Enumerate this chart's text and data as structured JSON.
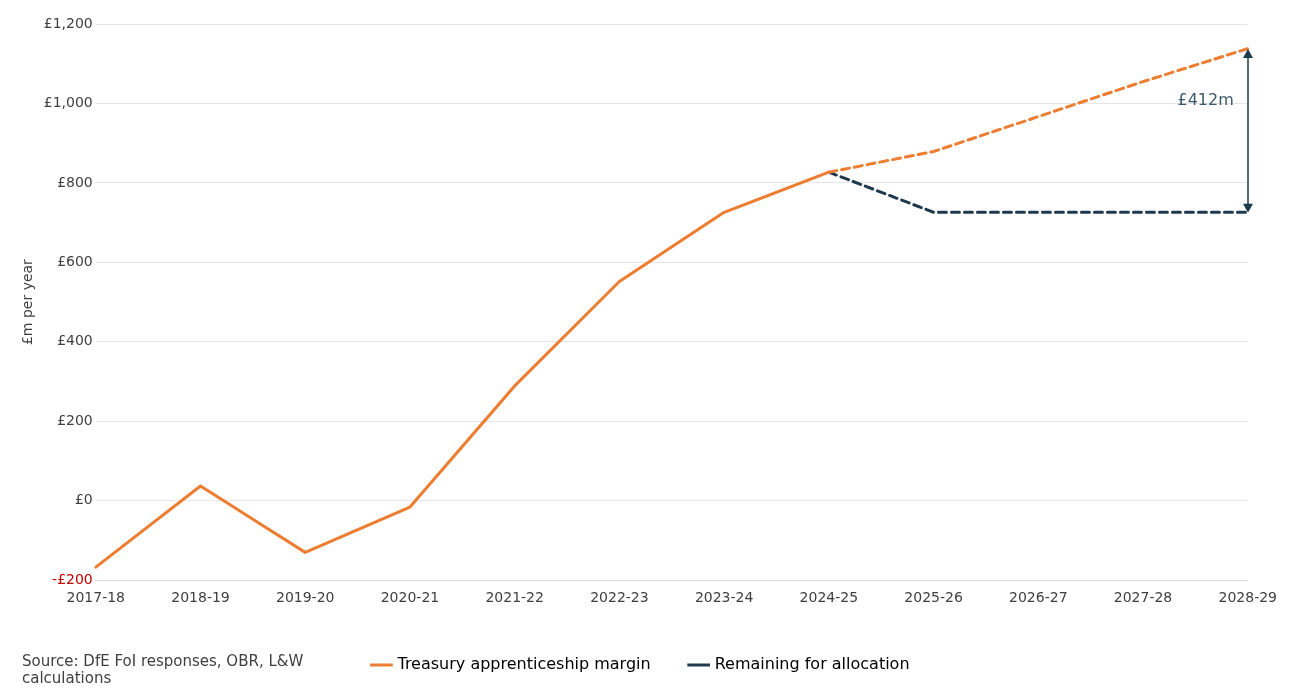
{
  "chart_data": {
    "type": "line",
    "ylabel": "£m per year",
    "categories": [
      "2017-18",
      "2018-19",
      "2019-20",
      "2020-21",
      "2021-22",
      "2022-23",
      "2023-24",
      "2024-25",
      "2025-26",
      "2026-27",
      "2027-28",
      "2028-29"
    ],
    "series": [
      {
        "name": "Treasury apprenticeship margin",
        "color": "#ed7d31",
        "line_style": "solid",
        "values": [
          -167,
          37,
          -130,
          -16,
          289,
          552,
          726,
          827,
          null,
          null,
          null,
          null
        ]
      },
      {
        "color": "#ed7d31",
        "line_style": "dashed",
        "values": [
          null,
          null,
          null,
          null,
          null,
          null,
          null,
          827,
          879,
          967,
          1055,
          1138
        ]
      },
      {
        "name": "Remaining for allocation",
        "color": "#1f3a4d",
        "line_style": "dashed",
        "values": [
          null,
          null,
          null,
          null,
          null,
          null,
          null,
          827,
          726,
          726,
          726,
          726
        ]
      }
    ],
    "ylim": [
      -200,
      1200
    ],
    "yticks": [
      {
        "value": -200,
        "label": "-£200"
      },
      {
        "value": 0,
        "label": "£0"
      },
      {
        "value": 200,
        "label": "£200"
      },
      {
        "value": 400,
        "label": "£400"
      },
      {
        "value": 600,
        "label": "£600"
      },
      {
        "value": 800,
        "label": "£800"
      },
      {
        "value": 1000,
        "label": "£1,000"
      },
      {
        "value": 1200,
        "label": "£1,200"
      }
    ],
    "grid": "y",
    "legend": "bottom",
    "marker": "none",
    "annotations": [
      "Source: DfE FoI responses, OBR, L&W calculations",
      "£412m"
    ]
  }
}
